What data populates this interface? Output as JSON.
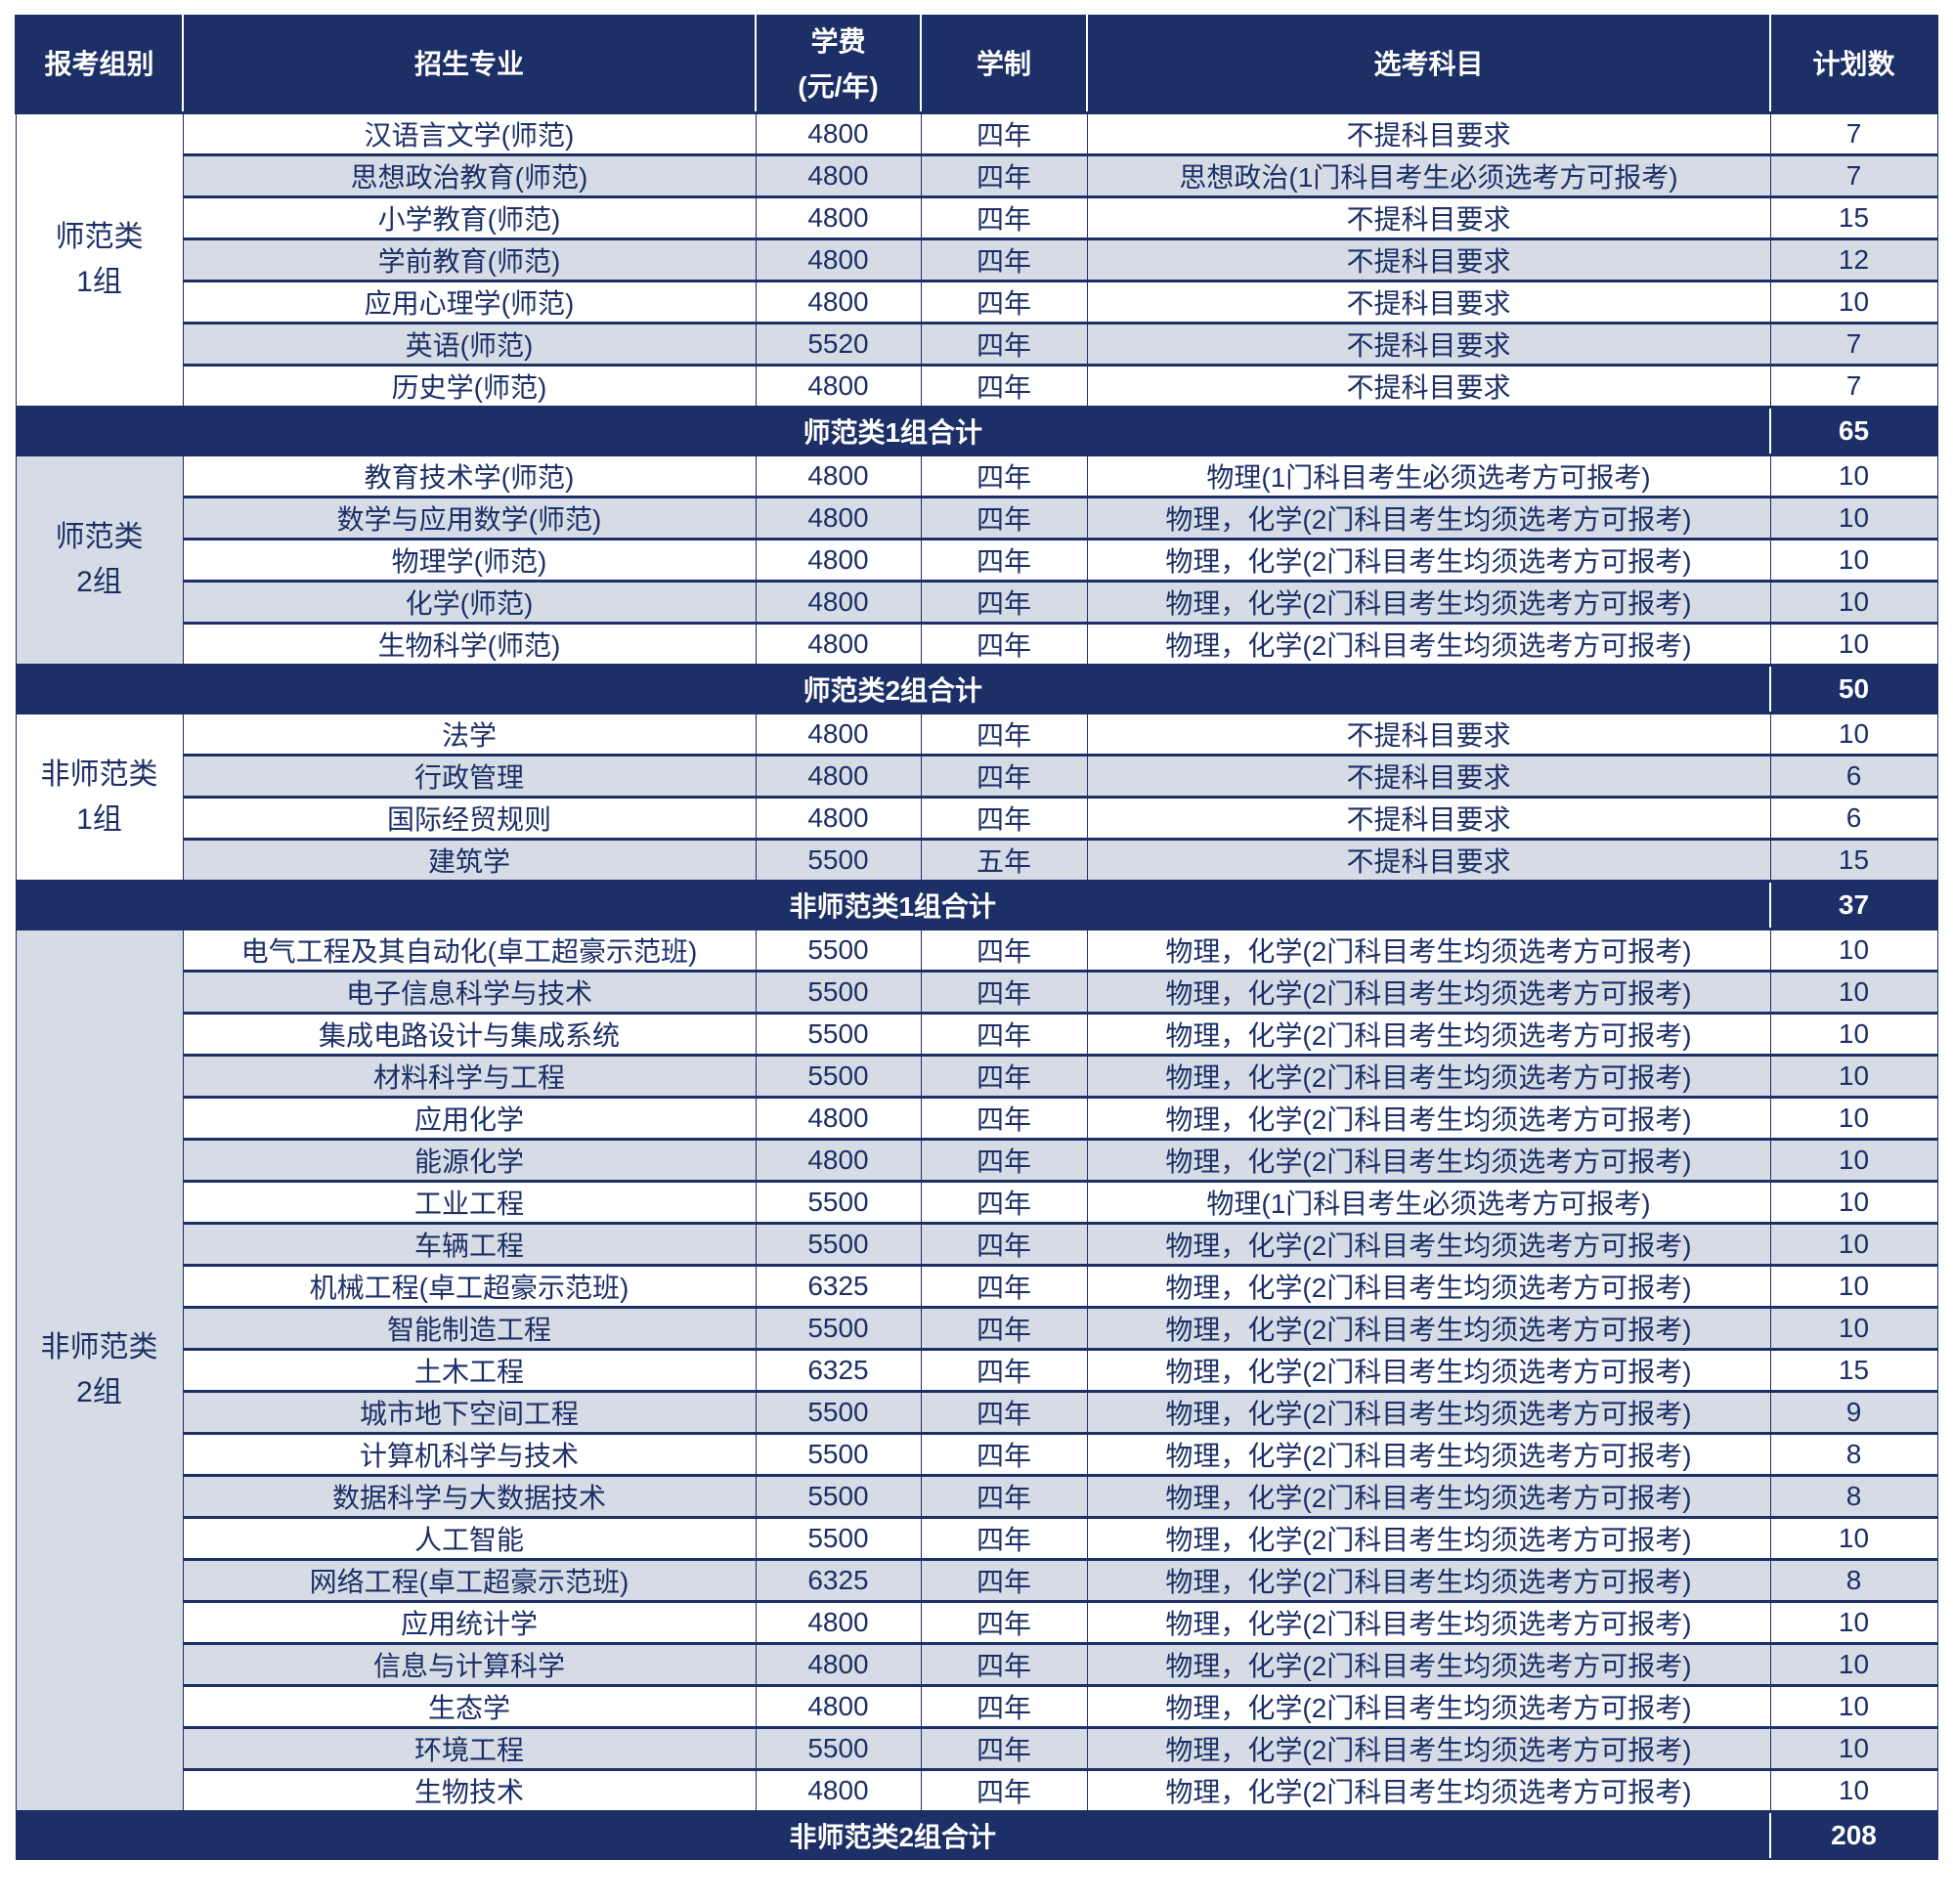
{
  "headers": [
    "报考组别",
    "招生专业",
    "学费\n(元/年)",
    "学制",
    "选考科目",
    "计划数"
  ],
  "colors": {
    "header_bg": "#1c2f66",
    "alt_row": "#d6dce5",
    "text": "#1c2f66"
  },
  "groups": [
    {
      "name": "师范类\n1组",
      "total_label": "师范类1组合计",
      "total": "65",
      "rows": [
        [
          "汉语言文学(师范)",
          "4800",
          "四年",
          "不提科目要求",
          "7"
        ],
        [
          "思想政治教育(师范)",
          "4800",
          "四年",
          "思想政治(1门科目考生必须选考方可报考)",
          "7"
        ],
        [
          "小学教育(师范)",
          "4800",
          "四年",
          "不提科目要求",
          "15"
        ],
        [
          "学前教育(师范)",
          "4800",
          "四年",
          "不提科目要求",
          "12"
        ],
        [
          "应用心理学(师范)",
          "4800",
          "四年",
          "不提科目要求",
          "10"
        ],
        [
          "英语(师范)",
          "5520",
          "四年",
          "不提科目要求",
          "7"
        ],
        [
          "历史学(师范)",
          "4800",
          "四年",
          "不提科目要求",
          "7"
        ]
      ]
    },
    {
      "name": "师范类\n2组",
      "total_label": "师范类2组合计",
      "total": "50",
      "rows": [
        [
          "教育技术学(师范)",
          "4800",
          "四年",
          "物理(1门科目考生必须选考方可报考)",
          "10"
        ],
        [
          "数学与应用数学(师范)",
          "4800",
          "四年",
          "物理，化学(2门科目考生均须选考方可报考)",
          "10"
        ],
        [
          "物理学(师范)",
          "4800",
          "四年",
          "物理，化学(2门科目考生均须选考方可报考)",
          "10"
        ],
        [
          "化学(师范)",
          "4800",
          "四年",
          "物理，化学(2门科目考生均须选考方可报考)",
          "10"
        ],
        [
          "生物科学(师范)",
          "4800",
          "四年",
          "物理，化学(2门科目考生均须选考方可报考)",
          "10"
        ]
      ]
    },
    {
      "name": "非师范类\n1组",
      "total_label": "非师范类1组合计",
      "total": "37",
      "rows": [
        [
          "法学",
          "4800",
          "四年",
          "不提科目要求",
          "10"
        ],
        [
          "行政管理",
          "4800",
          "四年",
          "不提科目要求",
          "6"
        ],
        [
          "国际经贸规则",
          "4800",
          "四年",
          "不提科目要求",
          "6"
        ],
        [
          "建筑学",
          "5500",
          "五年",
          "不提科目要求",
          "15"
        ]
      ]
    },
    {
      "name": "非师范类\n2组",
      "total_label": "非师范类2组合计",
      "total": "208",
      "rows": [
        [
          "电气工程及其自动化(卓工超豪示范班)",
          "5500",
          "四年",
          "物理，化学(2门科目考生均须选考方可报考)",
          "10"
        ],
        [
          "电子信息科学与技术",
          "5500",
          "四年",
          "物理，化学(2门科目考生均须选考方可报考)",
          "10"
        ],
        [
          "集成电路设计与集成系统",
          "5500",
          "四年",
          "物理，化学(2门科目考生均须选考方可报考)",
          "10"
        ],
        [
          "材料科学与工程",
          "5500",
          "四年",
          "物理，化学(2门科目考生均须选考方可报考)",
          "10"
        ],
        [
          "应用化学",
          "4800",
          "四年",
          "物理，化学(2门科目考生均须选考方可报考)",
          "10"
        ],
        [
          "能源化学",
          "4800",
          "四年",
          "物理，化学(2门科目考生均须选考方可报考)",
          "10"
        ],
        [
          "工业工程",
          "5500",
          "四年",
          "物理(1门科目考生必须选考方可报考)",
          "10"
        ],
        [
          "车辆工程",
          "5500",
          "四年",
          "物理，化学(2门科目考生均须选考方可报考)",
          "10"
        ],
        [
          "机械工程(卓工超豪示范班)",
          "6325",
          "四年",
          "物理，化学(2门科目考生均须选考方可报考)",
          "10"
        ],
        [
          "智能制造工程",
          "5500",
          "四年",
          "物理，化学(2门科目考生均须选考方可报考)",
          "10"
        ],
        [
          "土木工程",
          "6325",
          "四年",
          "物理，化学(2门科目考生均须选考方可报考)",
          "15"
        ],
        [
          "城市地下空间工程",
          "5500",
          "四年",
          "物理，化学(2门科目考生均须选考方可报考)",
          "9"
        ],
        [
          "计算机科学与技术",
          "5500",
          "四年",
          "物理，化学(2门科目考生均须选考方可报考)",
          "8"
        ],
        [
          "数据科学与大数据技术",
          "5500",
          "四年",
          "物理，化学(2门科目考生均须选考方可报考)",
          "8"
        ],
        [
          "人工智能",
          "5500",
          "四年",
          "物理，化学(2门科目考生均须选考方可报考)",
          "10"
        ],
        [
          "网络工程(卓工超豪示范班)",
          "6325",
          "四年",
          "物理，化学(2门科目考生均须选考方可报考)",
          "8"
        ],
        [
          "应用统计学",
          "4800",
          "四年",
          "物理，化学(2门科目考生均须选考方可报考)",
          "10"
        ],
        [
          "信息与计算科学",
          "4800",
          "四年",
          "物理，化学(2门科目考生均须选考方可报考)",
          "10"
        ],
        [
          "生态学",
          "4800",
          "四年",
          "物理，化学(2门科目考生均须选考方可报考)",
          "10"
        ],
        [
          "环境工程",
          "5500",
          "四年",
          "物理，化学(2门科目考生均须选考方可报考)",
          "10"
        ],
        [
          "生物技术",
          "4800",
          "四年",
          "物理，化学(2门科目考生均须选考方可报考)",
          "10"
        ]
      ]
    }
  ]
}
